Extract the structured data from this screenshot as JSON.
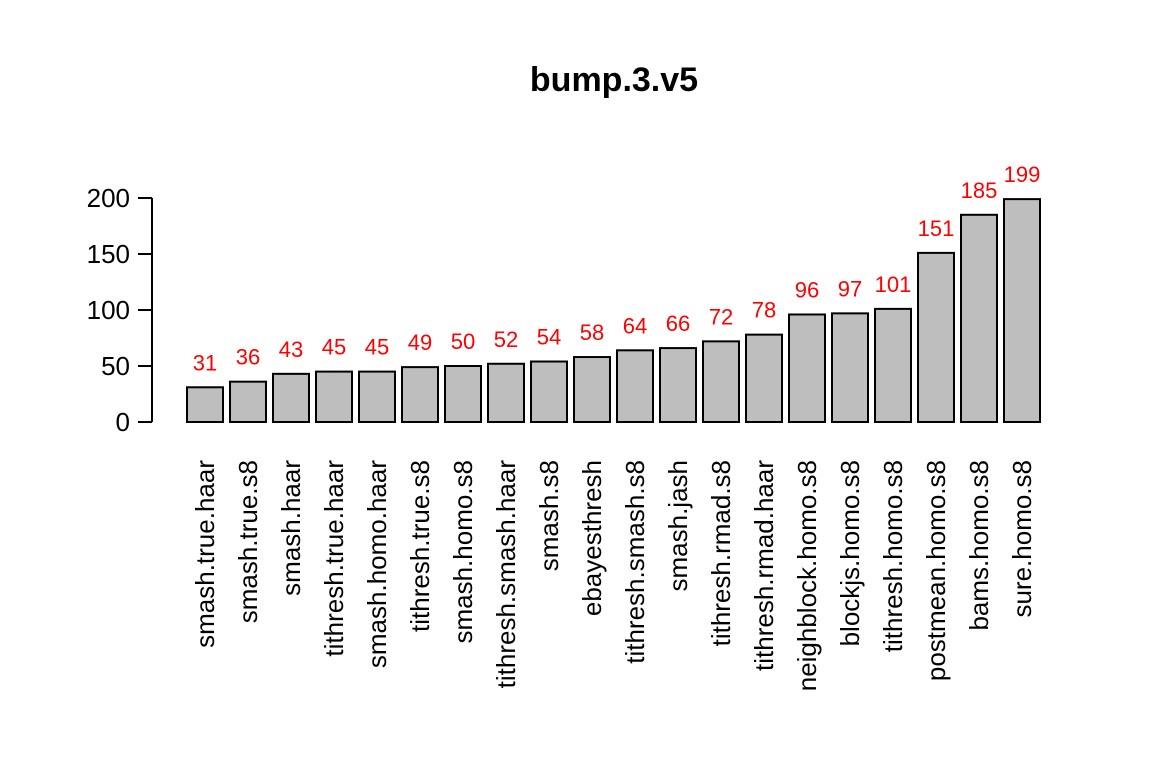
{
  "chart_data": {
    "type": "bar",
    "title": "bump.3.v5",
    "xlabel": "",
    "ylabel": "",
    "ylim": [
      0,
      200
    ],
    "yticks": [
      0,
      50,
      100,
      150,
      200
    ],
    "grid": false,
    "categories": [
      "smash.true.haar",
      "smash.true.s8",
      "smash.haar",
      "tithresh.true.haar",
      "smash.homo.haar",
      "tithresh.true.s8",
      "smash.homo.s8",
      "tithresh.smash.haar",
      "smash.s8",
      "ebayesthresh",
      "tithresh.smash.s8",
      "smash.jash",
      "tithresh.rmad.s8",
      "tithresh.rmad.haar",
      "neighblock.homo.s8",
      "blockjs.homo.s8",
      "tithresh.homo.s8",
      "postmean.homo.s8",
      "bams.homo.s8",
      "sure.homo.s8"
    ],
    "values": [
      31,
      36,
      43,
      45,
      45,
      49,
      50,
      52,
      54,
      58,
      64,
      66,
      72,
      78,
      96,
      97,
      101,
      151,
      185,
      199
    ],
    "value_labels": [
      "31",
      "36",
      "43",
      "45",
      "45",
      "49",
      "50",
      "52",
      "54",
      "58",
      "64",
      "66",
      "72",
      "78",
      "96",
      "97",
      "101",
      "151",
      "185",
      "199"
    ],
    "colors": {
      "bar_fill": "#bebebe",
      "bar_stroke": "#000000",
      "value_label": "#ff0000",
      "text": "#000000"
    }
  }
}
